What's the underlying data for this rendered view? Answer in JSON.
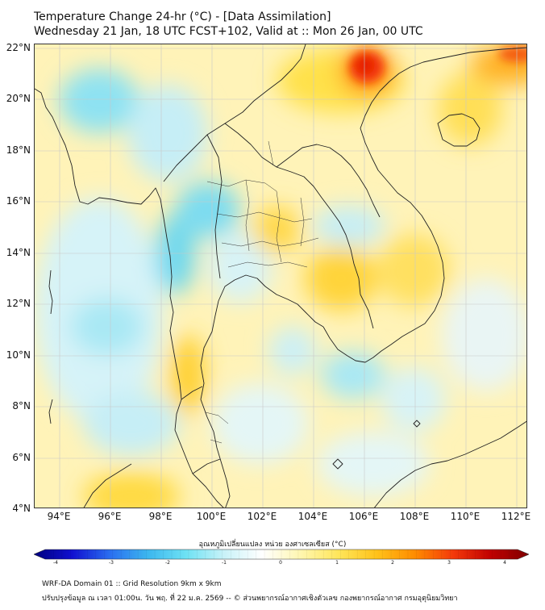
{
  "title": {
    "line1": "Temperature Change 24-hr (°C) - [Data Assimilation]",
    "line2": "Wednesday 21 Jan, 18 UTC FCST+102, Valid at :: Mon 26 Jan, 00 UTC"
  },
  "map": {
    "lat_labels": [
      "22°N",
      "20°N",
      "18°N",
      "16°N",
      "14°N",
      "12°N",
      "10°N",
      "8°N",
      "6°N",
      "4°N"
    ],
    "lon_labels": [
      "94°E",
      "96°E",
      "98°E",
      "100°E",
      "102°E",
      "104°E",
      "106°E",
      "108°E",
      "110°E",
      "112°E"
    ],
    "extent": {
      "lon_min": 93,
      "lon_max": 112.5,
      "lat_min": 4,
      "lat_max": 22.2
    },
    "field_color_scale": "blue-cyan-white-yellow-orange-red",
    "warm_center": "red/orange peak near 21.5°N 105.8°E"
  },
  "colorbar": {
    "label": "อุณหภูมิเปลี่ยนแปลง หน่วย องศาเซลเซียส (°C)",
    "ticks": [
      "-4",
      "-3",
      "-2",
      "-1",
      "0",
      "1",
      "2",
      "3",
      "4"
    ],
    "colors": [
      "#00007f",
      "#1010d0",
      "#2a6ef0",
      "#3cb7ef",
      "#6ee2f4",
      "#c9f2f8",
      "#ffffff",
      "#fff6b0",
      "#ffe65a",
      "#ffc21a",
      "#ff8c00",
      "#f43a0a",
      "#c00000",
      "#7f0000"
    ]
  },
  "footer": {
    "line1": "WRF-DA Domain 01 :: Grid Resolution 9km x 9km",
    "line2": "ปรับปรุงข้อมูล ณ เวลา 01:00น. วัน พฤ. ที่ 22 ม.ค. 2569 -- © ส่วนพยากรณ์อากาศเชิงตัวเลข กองพยากรณ์อากาศ กรมอุตุนิยมวิทยา"
  }
}
